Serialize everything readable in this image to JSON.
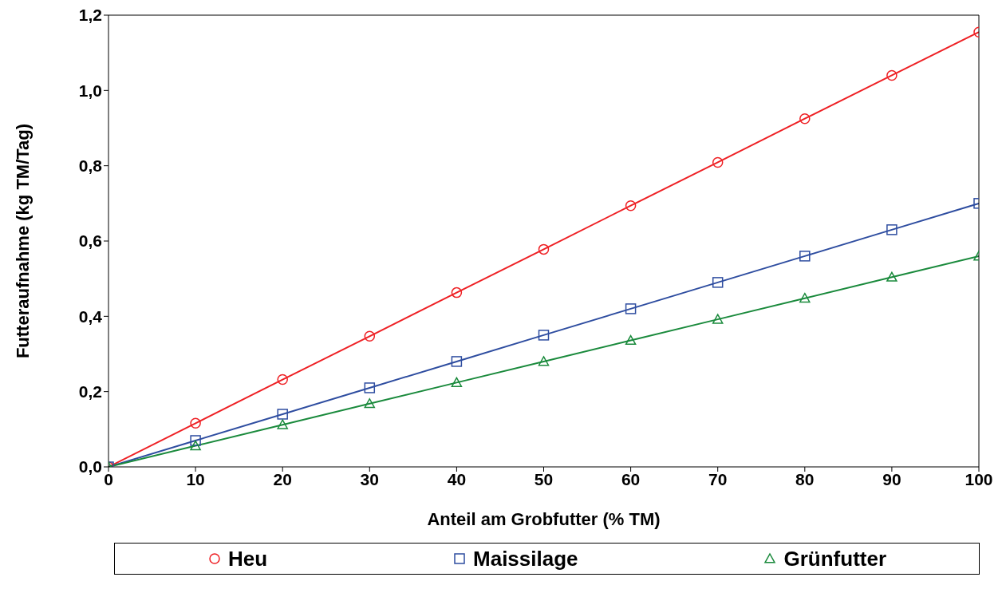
{
  "chart_data": {
    "type": "line",
    "xlabel": "Anteil am Grobfutter (% TM)",
    "ylabel": "Futteraufnahme (kg TM/Tag)",
    "x": [
      0,
      10,
      20,
      30,
      40,
      50,
      60,
      70,
      80,
      90,
      100
    ],
    "series": [
      {
        "name": "Heu",
        "color": "#ee2024",
        "marker": "circle",
        "values": [
          0,
          0.116,
          0.232,
          0.347,
          0.463,
          0.578,
          0.694,
          0.809,
          0.925,
          1.04,
          1.155
        ]
      },
      {
        "name": "Maissilage",
        "color": "#2e4da0",
        "marker": "square",
        "values": [
          0,
          0.07,
          0.14,
          0.21,
          0.28,
          0.35,
          0.42,
          0.49,
          0.56,
          0.63,
          0.7
        ]
      },
      {
        "name": "Grünfutter",
        "color": "#1a8a3c",
        "marker": "triangle",
        "values": [
          0,
          0.056,
          0.112,
          0.168,
          0.224,
          0.28,
          0.336,
          0.392,
          0.448,
          0.504,
          0.56
        ]
      }
    ],
    "xlim": [
      0,
      100
    ],
    "xticks": [
      0,
      10,
      20,
      30,
      40,
      50,
      60,
      70,
      80,
      90,
      100
    ],
    "ylim": [
      0,
      1.2
    ],
    "yticks": [
      {
        "value": 0,
        "label": "0,0"
      },
      {
        "value": 0.2,
        "label": "0,2"
      },
      {
        "value": 0.4,
        "label": "0,4"
      },
      {
        "value": 0.6,
        "label": "0,6"
      },
      {
        "value": 0.8,
        "label": "0,8"
      },
      {
        "value": 1.0,
        "label": "1,0"
      },
      {
        "value": 1.2,
        "label": "1,2"
      }
    ],
    "grid": false,
    "legend": "bottom",
    "line_style": "solid"
  }
}
